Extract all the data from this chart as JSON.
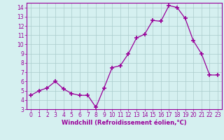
{
  "x": [
    0,
    1,
    2,
    3,
    4,
    5,
    6,
    7,
    8,
    9,
    10,
    11,
    12,
    13,
    14,
    15,
    16,
    17,
    18,
    19,
    20,
    21,
    22,
    23
  ],
  "y": [
    4.5,
    5.0,
    5.3,
    6.0,
    5.2,
    4.7,
    4.5,
    4.5,
    3.2,
    5.3,
    7.5,
    7.7,
    9.0,
    10.7,
    11.1,
    12.6,
    12.5,
    14.2,
    14.0,
    12.8,
    10.4,
    9.0,
    6.7,
    6.7
  ],
  "line_color": "#990099",
  "marker": "+",
  "marker_size": 4,
  "bg_color": "#d5f0f0",
  "grid_color": "#aacccc",
  "xlabel": "Windchill (Refroidissement éolien,°C)",
  "xlabel_color": "#990099",
  "xlabel_fontsize": 6,
  "ylim": [
    3,
    14.5
  ],
  "xlim": [
    -0.5,
    23.5
  ],
  "yticks": [
    3,
    4,
    5,
    6,
    7,
    8,
    9,
    10,
    11,
    12,
    13,
    14
  ],
  "xticks": [
    0,
    1,
    2,
    3,
    4,
    5,
    6,
    7,
    8,
    9,
    10,
    11,
    12,
    13,
    14,
    15,
    16,
    17,
    18,
    19,
    20,
    21,
    22,
    23
  ],
  "tick_fontsize": 5.5,
  "axis_label_color": "#990099",
  "linewidth": 0.9
}
